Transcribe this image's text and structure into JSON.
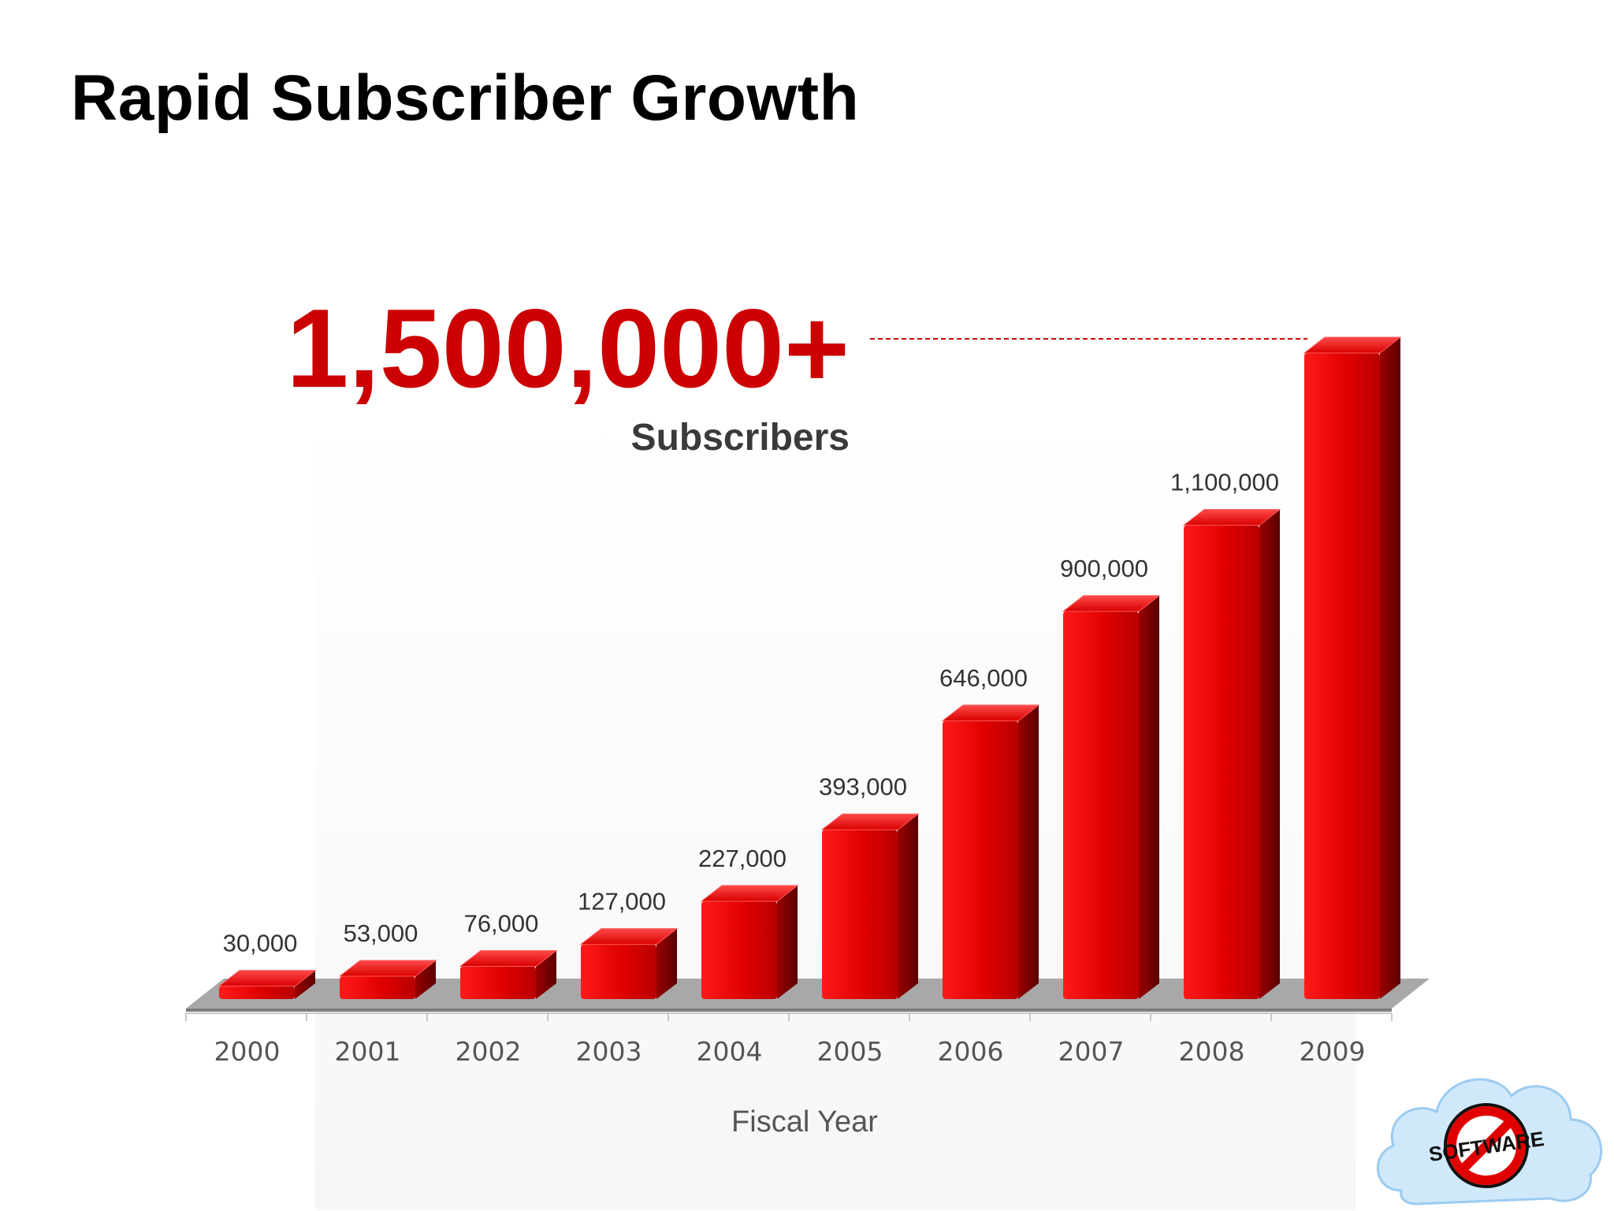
{
  "slide": {
    "title": "Rapid Subscriber Growth",
    "hero_value": "1,500,000+",
    "hero_label": "Subscribers"
  },
  "colors": {
    "bar_front": "#d40000",
    "bar_side": "#7a0000",
    "bar_top": "#ff2a2a",
    "hero": "#cc0000",
    "floor": "#9a9a9a"
  },
  "logo": {
    "text": "SOFTWARE",
    "icon": "no-software-cloud-logo"
  },
  "chart_data": {
    "type": "bar",
    "categories": [
      "2000",
      "2001",
      "2002",
      "2003",
      "2004",
      "2005",
      "2006",
      "2007",
      "2008",
      "2009"
    ],
    "values": [
      30000,
      53000,
      76000,
      127000,
      227000,
      393000,
      646000,
      900000,
      1100000,
      1500000
    ],
    "value_labels": [
      "30,000",
      "53,000",
      "76,000",
      "127,000",
      "227,000",
      "393,000",
      "646,000",
      "900,000",
      "1,100,000",
      ""
    ],
    "xlabel": "Fiscal Year",
    "ylabel": "",
    "ylim": [
      0,
      1500000
    ],
    "grid": false,
    "style": "3d"
  }
}
